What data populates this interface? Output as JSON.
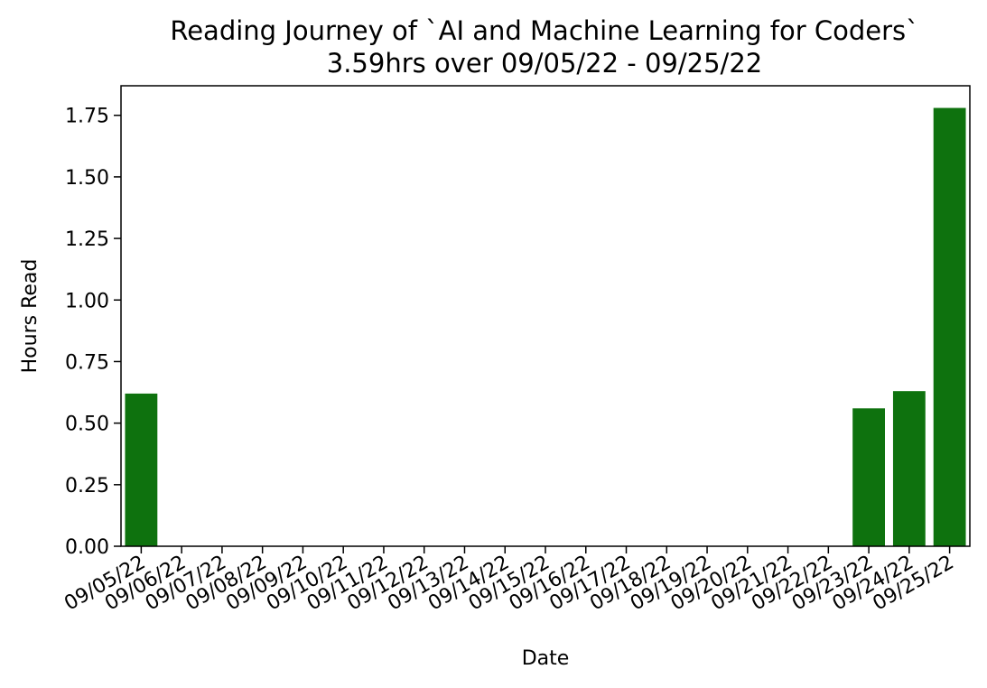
{
  "chart_data": {
    "type": "bar",
    "title": "Reading Journey of `AI and Machine Learning for Coders`",
    "subtitle": "3.59hrs over 09/05/22 - 09/25/22",
    "xlabel": "Date",
    "ylabel": "Hours Read",
    "categories": [
      "09/05/22",
      "09/06/22",
      "09/07/22",
      "09/08/22",
      "09/09/22",
      "09/10/22",
      "09/11/22",
      "09/12/22",
      "09/13/22",
      "09/14/22",
      "09/15/22",
      "09/16/22",
      "09/17/22",
      "09/18/22",
      "09/19/22",
      "09/20/22",
      "09/21/22",
      "09/22/22",
      "09/23/22",
      "09/24/22",
      "09/25/22"
    ],
    "values": [
      0.62,
      0,
      0,
      0,
      0,
      0,
      0,
      0,
      0,
      0,
      0,
      0,
      0,
      0,
      0,
      0,
      0,
      0,
      0.56,
      0.63,
      1.78
    ],
    "yticks": [
      "0.00",
      "0.25",
      "0.50",
      "0.75",
      "1.00",
      "1.25",
      "1.50",
      "1.75"
    ],
    "ylim": [
      0,
      1.87
    ],
    "grid": false,
    "bar_color": "#0e720e"
  }
}
